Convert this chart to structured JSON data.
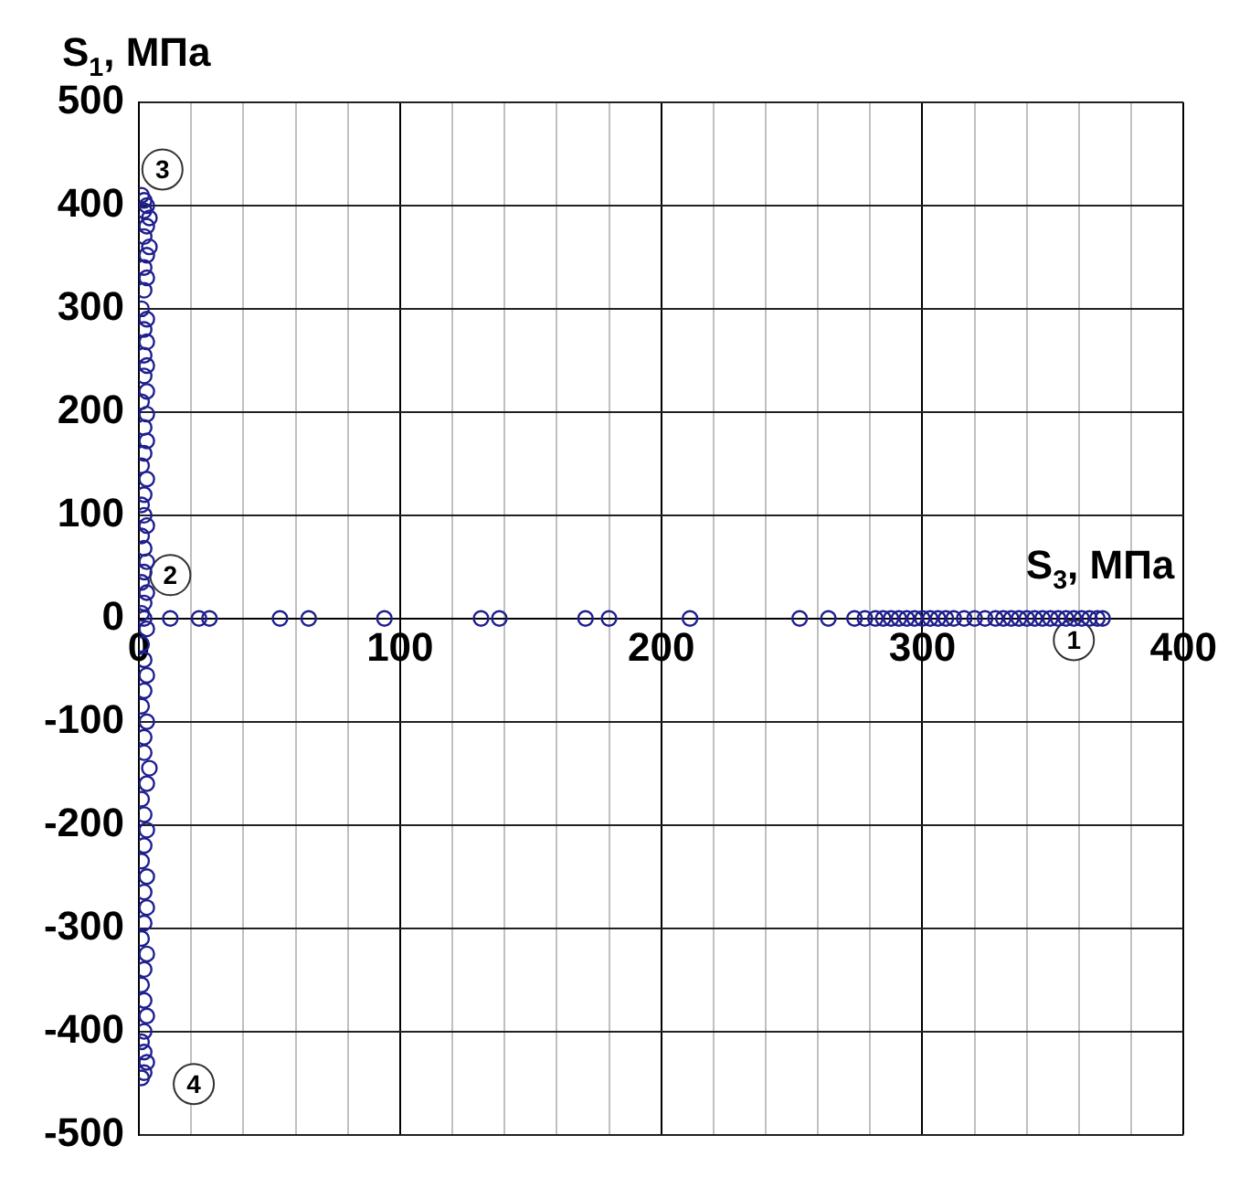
{
  "chart_data": {
    "type": "scatter",
    "xlabel": "S$_{3}$, МПа",
    "ylabel": "S$_{1}$, МПа",
    "xlim": [
      0,
      400
    ],
    "ylim": [
      -500,
      500
    ],
    "xticks": [
      0,
      {
        "value": 20,
        "label": null
      },
      {
        "value": 40,
        "label": null
      },
      {
        "value": 60,
        "label": null
      },
      {
        "value": 80,
        "label": null
      },
      100,
      {
        "value": 120,
        "label": null
      },
      {
        "value": 140,
        "label": null
      },
      {
        "value": 160,
        "label": null
      },
      {
        "value": 180,
        "label": null
      },
      200,
      {
        "value": 220,
        "label": null
      },
      {
        "value": 240,
        "label": null
      },
      {
        "value": 260,
        "label": null
      },
      {
        "value": 280,
        "label": null
      },
      300,
      {
        "value": 320,
        "label": null
      },
      {
        "value": 340,
        "label": null
      },
      {
        "value": 360,
        "label": null
      },
      {
        "value": 380,
        "label": null
      },
      400
    ],
    "yticks": [
      -500,
      -400,
      -300,
      -200,
      -100,
      0,
      100,
      200,
      300,
      400,
      500
    ],
    "grid": true,
    "marker": "circle",
    "annotations": [
      {
        "text": "1",
        "x": 358,
        "y": -21
      },
      {
        "text": "2",
        "x": 12,
        "y": 42
      },
      {
        "text": "3",
        "x": 9,
        "y": 435
      },
      {
        "text": "4",
        "x": 21,
        "y": -451
      }
    ],
    "series": [
      {
        "color": "#1f1f8f",
        "x": [
          1,
          2,
          3,
          2,
          4,
          3,
          2,
          4,
          3,
          2,
          3,
          2,
          1,
          3,
          2,
          3,
          2,
          3,
          2,
          3,
          1,
          3,
          2,
          3,
          2,
          1,
          3,
          2,
          1,
          2,
          3,
          1,
          2,
          3,
          2,
          1,
          3,
          2,
          1,
          2,
          3,
          1,
          2,
          3,
          2,
          1,
          3,
          2,
          4,
          2,
          3,
          1,
          2,
          3,
          2,
          1,
          3,
          2,
          3,
          2,
          1,
          3,
          2,
          1,
          2,
          3,
          2,
          1,
          2,
          3,
          2,
          1,
          12,
          23,
          27,
          54,
          65,
          94,
          131,
          138,
          171,
          180,
          211,
          253,
          264,
          274,
          278,
          282,
          285,
          288,
          291,
          294,
          297,
          300,
          303,
          306,
          309,
          312,
          316,
          320,
          324,
          328,
          331,
          334,
          337,
          340,
          343,
          346,
          349,
          352,
          355,
          358,
          361,
          364,
          367,
          369
        ],
        "values": [
          410,
          405,
          400,
          395,
          388,
          380,
          370,
          360,
          352,
          340,
          330,
          318,
          300,
          290,
          280,
          268,
          255,
          245,
          235,
          220,
          210,
          198,
          185,
          172,
          160,
          148,
          135,
          120,
          110,
          100,
          90,
          80,
          68,
          55,
          45,
          35,
          25,
          15,
          5,
          0,
          -10,
          -25,
          -40,
          -55,
          -70,
          -85,
          -100,
          -115,
          -145,
          -130,
          -160,
          -175,
          -190,
          -205,
          -220,
          -235,
          -250,
          -265,
          -280,
          -295,
          -310,
          -325,
          -340,
          -355,
          -370,
          -385,
          -400,
          -410,
          -420,
          -430,
          -440,
          -445,
          0,
          0,
          0,
          0,
          0,
          0,
          0,
          0,
          0,
          0,
          0,
          0,
          0,
          0,
          0,
          0,
          0,
          0,
          0,
          0,
          0,
          0,
          0,
          0,
          0,
          0,
          0,
          0,
          0,
          0,
          0,
          0,
          0,
          0,
          0,
          0,
          0,
          0,
          0,
          0,
          0,
          0,
          0,
          0
        ]
      }
    ]
  }
}
